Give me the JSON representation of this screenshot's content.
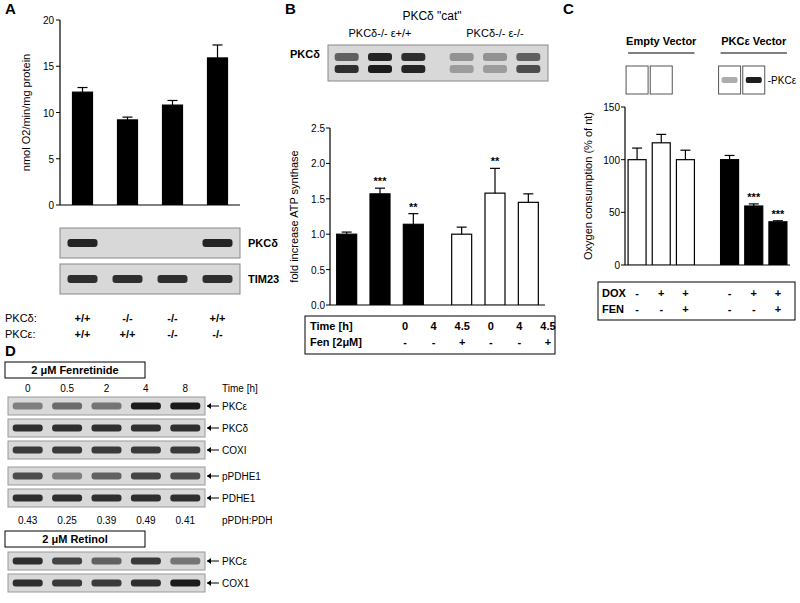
{
  "chart_data": [
    {
      "type": "bar",
      "title": "A",
      "y_label": "nmol O2/min/mg protein",
      "categories": [
        null,
        null,
        null,
        null
      ],
      "values": [
        12.2,
        9.2,
        10.8,
        15.9
      ],
      "errors": [
        0.5,
        0.3,
        0.5,
        1.4
      ],
      "color": "#000000",
      "ylim": [
        0,
        20
      ],
      "yticks": [
        0,
        5,
        10,
        15,
        20
      ],
      "condition_rows": [
        {
          "label": "PKCδ:",
          "values": [
            "+/+",
            "-/-",
            "-/-",
            "+/+"
          ]
        },
        {
          "label": "PKCε:",
          "values": [
            "+/+",
            "+/+",
            "-/-",
            "-/-"
          ]
        }
      ],
      "blots": [
        {
          "label": "PKCδ",
          "bands": [
            [
              0.9,
              0,
              0,
              0.9
            ]
          ]
        },
        {
          "label": "TIM23",
          "bands": [
            [
              0.85,
              0.85,
              0.85,
              0.85
            ]
          ]
        }
      ]
    },
    {
      "type": "bar",
      "title": "B",
      "subtitle": "PKCδ \"cat\"",
      "y_label": "fold increase ATP synthase",
      "x_label": "Time [h]",
      "group_labels": [
        "PKCδ-/- ε+/+",
        "PKCδ-/- ε-/-"
      ],
      "categories": [
        "0",
        "4",
        "4.5",
        "0",
        "4",
        "4.5"
      ],
      "values": [
        1.0,
        1.57,
        1.14,
        1.0,
        1.58,
        1.45
      ],
      "errors": [
        0.03,
        0.08,
        0.15,
        0.1,
        0.35,
        0.12
      ],
      "significance": [
        null,
        "***",
        "**",
        null,
        "**",
        null
      ],
      "colors": [
        "#000000",
        "#000000",
        "#000000",
        "#ffffff",
        "#ffffff",
        "#ffffff"
      ],
      "ylim": [
        0,
        2.5
      ],
      "yticks": [
        {
          "value": 0,
          "label": "0.0"
        },
        {
          "value": 0.5,
          "label": "0.5"
        },
        {
          "value": 1,
          "label": "1.0"
        },
        {
          "value": 1.5,
          "label": "1.5"
        },
        {
          "value": 2,
          "label": "2.0"
        },
        {
          "value": 2.5,
          "label": "2.5"
        }
      ],
      "condition_rows": [
        {
          "label": "Fen [2μM]",
          "values": [
            "-",
            "-",
            "+",
            "-",
            "-",
            "+"
          ]
        }
      ],
      "blots": [
        {
          "label": "PKCδ",
          "bands": [
            [
              0.6,
              0.9,
              0.85,
              0.35,
              0.35,
              0.6
            ],
            [
              0.85,
              0.95,
              0.9,
              0.3,
              0.3,
              0.7
            ]
          ]
        }
      ]
    },
    {
      "type": "bar",
      "title": "C",
      "y_label": "Oxygen consumption (% of nt)",
      "group_labels": [
        "Empty Vector",
        "PKCε Vector"
      ],
      "categories": [
        null,
        null,
        null,
        null,
        null,
        null
      ],
      "values": [
        100,
        116,
        100,
        100,
        56,
        41
      ],
      "errors": [
        11,
        8,
        9,
        4,
        2,
        1
      ],
      "significance": [
        null,
        null,
        null,
        null,
        "***",
        "***"
      ],
      "colors": [
        "#ffffff",
        "#ffffff",
        "#ffffff",
        "#000000",
        "#000000",
        "#000000"
      ],
      "ylim": [
        0,
        150
      ],
      "yticks": [
        0,
        50,
        100,
        150
      ],
      "condition_rows": [
        {
          "label": "DOX",
          "values": [
            "-",
            "+",
            "+",
            "-",
            "+",
            "+"
          ]
        },
        {
          "label": "FEN",
          "values": [
            "-",
            "-",
            "+",
            "-",
            "-",
            "+"
          ]
        }
      ],
      "blots": [
        {
          "label": "-PKCε",
          "bands": [
            [
              0,
              0,
              0.35,
              0.95
            ]
          ]
        }
      ]
    }
  ],
  "panel_d": {
    "title": "D",
    "sections": [
      {
        "header": "2 μM Fenretinide",
        "x_label": "Time [h]",
        "lanes": [
          "0",
          "0.5",
          "2",
          "4",
          "8"
        ],
        "blot_groups": [
          [
            {
              "label": "PKCε",
              "bands": [
                [
                  0.45,
                  0.55,
                  0.5,
                  0.95,
                  0.95
                ]
              ]
            },
            {
              "label": "PKCδ",
              "bands": [
                [
                  0.85,
                  0.85,
                  0.85,
                  0.85,
                  0.85
                ]
              ]
            },
            {
              "label": "COXI",
              "bands": [
                [
                  0.8,
                  0.8,
                  0.8,
                  0.8,
                  0.8
                ]
              ]
            }
          ],
          [
            {
              "label": "pPDHE1",
              "bands": [
                [
                  0.7,
                  0.45,
                  0.6,
                  0.75,
                  0.7
                ]
              ]
            },
            {
              "label": "PDHE1",
              "bands": [
                [
                  0.85,
                  0.85,
                  0.85,
                  0.85,
                  0.85
                ]
              ]
            }
          ]
        ],
        "ratio": {
          "label": "pPDH:PDH",
          "values": [
            0.43,
            0.25,
            0.39,
            0.49,
            0.41
          ]
        }
      },
      {
        "header": "2 μM Retinol",
        "blot_groups": [
          [
            {
              "label": "PKCε",
              "bands": [
                [
                  0.85,
                  0.75,
                  0.6,
                  0.8,
                  0.5
                ]
              ]
            },
            {
              "label": "COX1",
              "bands": [
                [
                  0.85,
                  0.8,
                  0.8,
                  0.85,
                  0.95
                ]
              ]
            }
          ]
        ]
      }
    ]
  }
}
